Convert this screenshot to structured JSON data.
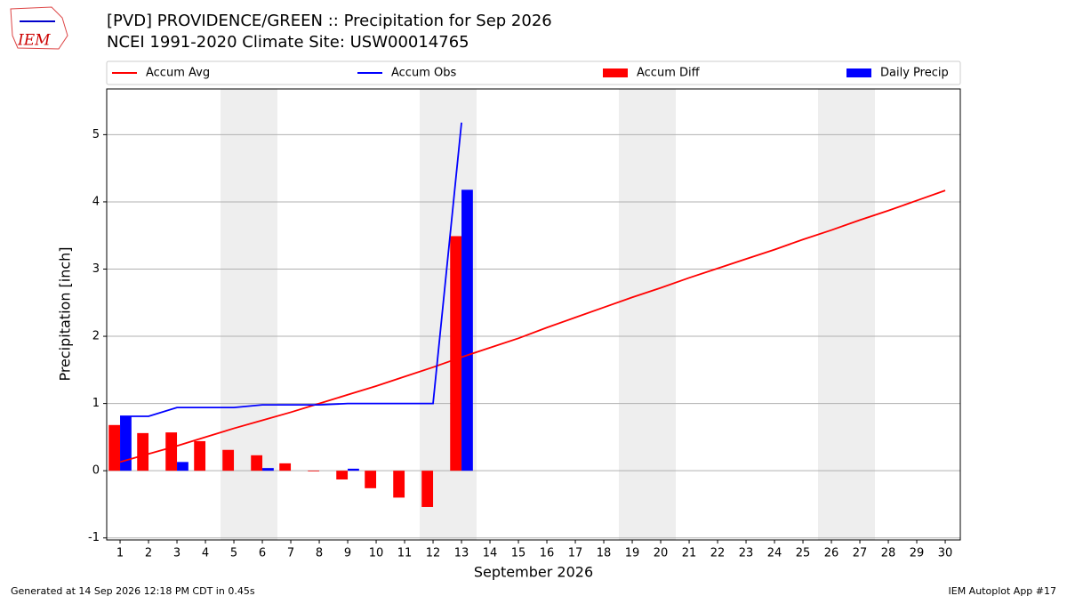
{
  "logo_text": "IEM",
  "footer_left": "Generated at 14 Sep 2026 12:18 PM CDT in 0.45s",
  "footer_right": "IEM Autoplot App #17",
  "chart_data": {
    "type": "bar_line",
    "title": "[PVD] PROVIDENCE/GREEN :: Precipitation for Sep 2026",
    "subtitle": "NCEI 1991-2020 Climate Site: USW00014765",
    "x_label": "September 2026",
    "y_label": "Precipitation [inch]",
    "x": [
      1,
      2,
      3,
      4,
      5,
      6,
      7,
      8,
      9,
      10,
      11,
      12,
      13,
      14,
      15,
      16,
      17,
      18,
      19,
      20,
      21,
      22,
      23,
      24,
      25,
      26,
      27,
      28,
      29,
      30
    ],
    "xlim": [
      0.53,
      30.53
    ],
    "ylim": [
      -1.03,
      5.68
    ],
    "yticks": [
      -1,
      0,
      1,
      2,
      3,
      4,
      5
    ],
    "grid": true,
    "legend": "top",
    "series": [
      {
        "name": "Accum Avg",
        "kind": "line",
        "color": "#ff0000",
        "values": [
          0.13,
          0.25,
          0.37,
          0.5,
          0.63,
          0.75,
          0.87,
          1.0,
          1.13,
          1.26,
          1.4,
          1.54,
          1.69,
          1.83,
          1.97,
          2.13,
          2.28,
          2.43,
          2.58,
          2.72,
          2.87,
          3.01,
          3.15,
          3.29,
          3.44,
          3.58,
          3.73,
          3.87,
          4.02,
          4.17
        ]
      },
      {
        "name": "Accum Obs",
        "kind": "line",
        "color": "#0000ff",
        "values": [
          0.81,
          0.81,
          0.94,
          0.94,
          0.94,
          0.98,
          0.98,
          0.98,
          1.0,
          1.0,
          1.0,
          1.0,
          5.18,
          null,
          null,
          null,
          null,
          null,
          null,
          null,
          null,
          null,
          null,
          null,
          null,
          null,
          null,
          null,
          null,
          null
        ]
      },
      {
        "name": "Accum Diff",
        "kind": "bar",
        "side": "left",
        "color": "#ff0000",
        "values": [
          0.68,
          0.56,
          0.57,
          0.44,
          0.31,
          0.23,
          0.11,
          -0.01,
          -0.13,
          -0.26,
          -0.4,
          -0.54,
          3.49,
          null,
          null,
          null,
          null,
          null,
          null,
          null,
          null,
          null,
          null,
          null,
          null,
          null,
          null,
          null,
          null,
          null
        ]
      },
      {
        "name": "Daily Precip",
        "kind": "bar",
        "side": "right",
        "color": "#0000ff",
        "values": [
          0.81,
          0,
          0.13,
          0,
          0,
          0.04,
          0,
          0,
          0.03,
          0,
          0,
          0,
          4.18,
          null,
          null,
          null,
          null,
          null,
          null,
          null,
          null,
          null,
          null,
          null,
          null,
          null,
          null,
          null,
          null,
          null
        ]
      }
    ]
  }
}
